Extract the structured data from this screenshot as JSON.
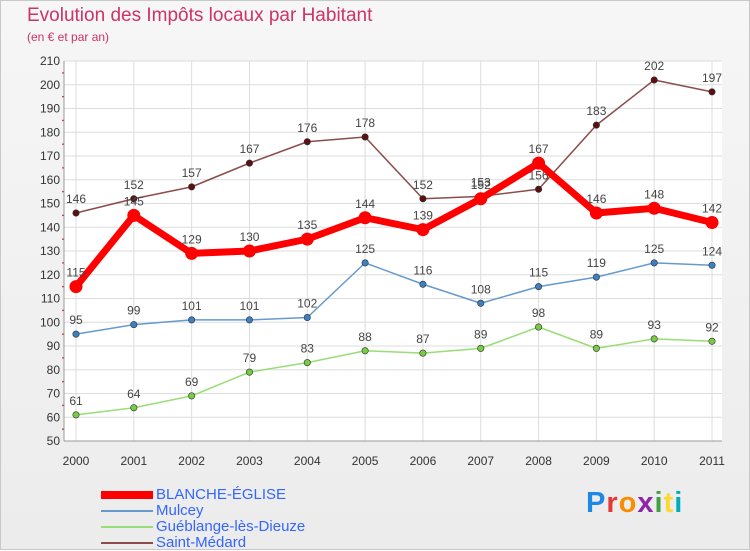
{
  "title": "Evolution des Impôts locaux par Habitant",
  "subtitle": "(en € et par an)",
  "logo": {
    "text": "Proxiti",
    "colors": [
      "#1e88e5",
      "#e53935",
      "#fb8c00",
      "#8e24aa",
      "#43a047",
      "#fdd835",
      "#00acc1"
    ]
  },
  "chart_data": {
    "type": "line",
    "title": "Evolution des Impôts locaux par Habitant",
    "subtitle": "(en € et par an)",
    "x": [
      "2000",
      "2001",
      "2002",
      "2003",
      "2004",
      "2005",
      "2006",
      "2007",
      "2008",
      "2009",
      "2010",
      "2011"
    ],
    "ylim": [
      50,
      210
    ],
    "yticks": [
      50,
      60,
      70,
      80,
      90,
      100,
      110,
      120,
      130,
      140,
      150,
      160,
      170,
      180,
      190,
      200,
      210
    ],
    "grid": true,
    "legend": "bottom-left",
    "series": [
      {
        "name": "BLANCHE-ÉGLISE",
        "color": "#ff0000",
        "marker": "#ff0000",
        "thick": true,
        "values": [
          115,
          145,
          129,
          130,
          135,
          144,
          139,
          152,
          167,
          146,
          148,
          142
        ],
        "labels": [
          "115",
          "145",
          "129",
          "130",
          "135",
          "144",
          "139",
          "152",
          "167",
          "146",
          "148",
          "142"
        ]
      },
      {
        "name": "Mulcey",
        "color": "#6699cc",
        "marker": "#3b7fc4",
        "thick": false,
        "values": [
          95,
          99,
          101,
          101,
          102,
          125,
          116,
          108,
          115,
          119,
          125,
          124
        ],
        "labels": [
          "95",
          "99",
          "101",
          "101",
          "102",
          "125",
          "116",
          "108",
          "115",
          "119",
          "125",
          "124"
        ]
      },
      {
        "name": "Guéblange-lès-Dieuze",
        "color": "#99dd77",
        "marker": "#77cc44",
        "thick": false,
        "values": [
          61,
          64,
          69,
          79,
          83,
          88,
          87,
          89,
          98,
          89,
          93,
          92
        ],
        "labels": [
          "61",
          "64",
          "69",
          "79",
          "83",
          "88",
          "87",
          "89",
          "98",
          "89",
          "93",
          "92"
        ]
      },
      {
        "name": "Saint-Médard",
        "color": "#8b4c4c",
        "marker": "#5c1010",
        "thick": false,
        "values": [
          146,
          152,
          157,
          167,
          176,
          178,
          152,
          153,
          156,
          183,
          202,
          197
        ],
        "labels": [
          "146",
          "152",
          "157",
          "167",
          "176",
          "178",
          "152",
          "153",
          "156",
          "183",
          "202",
          "197"
        ]
      }
    ]
  }
}
